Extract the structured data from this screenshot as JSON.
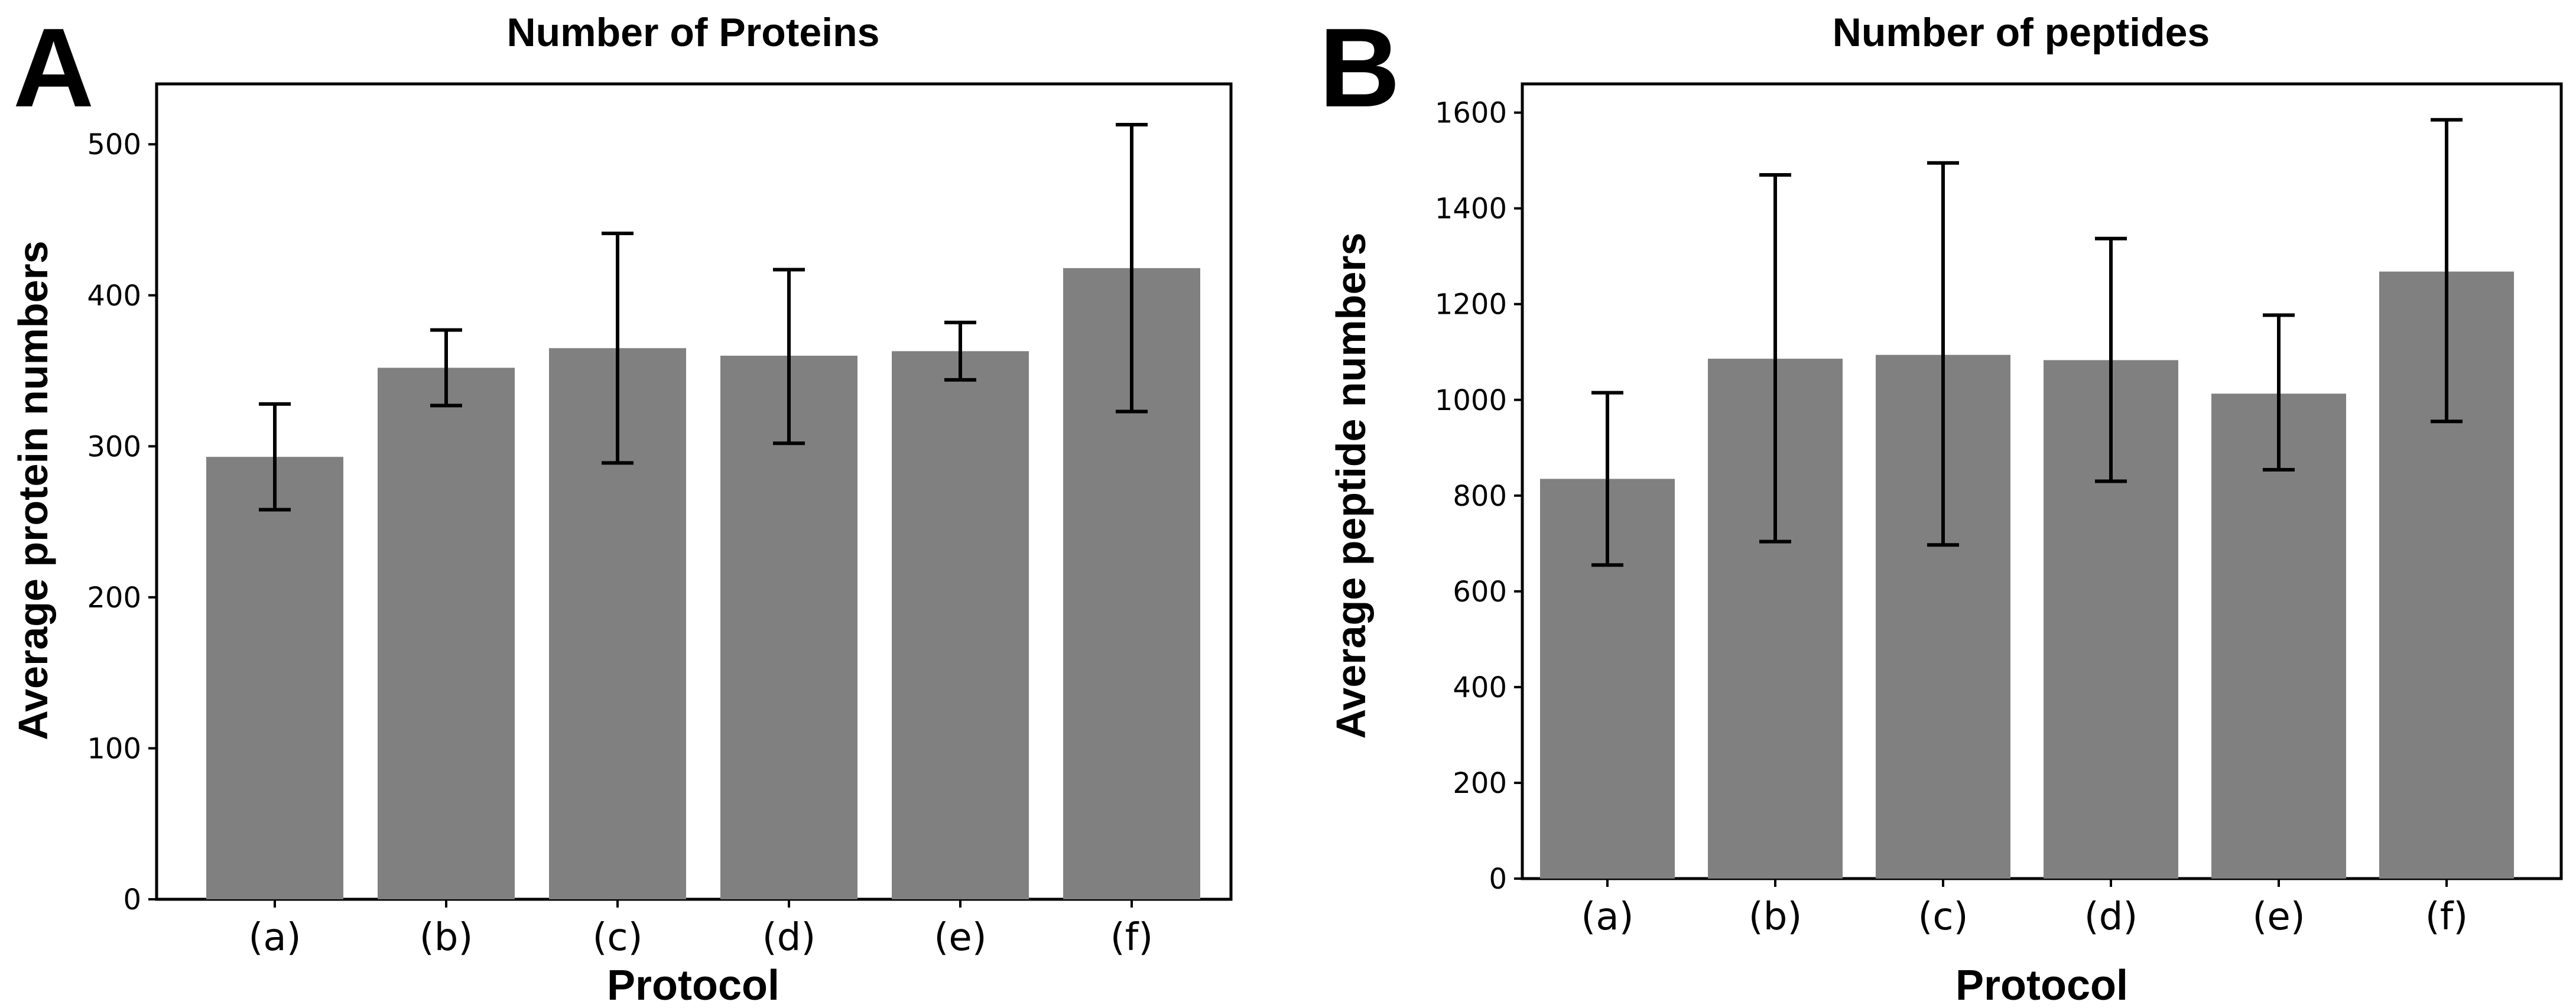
{
  "panels": [
    {
      "letter": "A"
    },
    {
      "letter": "B"
    }
  ],
  "chart_data": [
    {
      "type": "bar",
      "title": "Number of Proteins",
      "xlabel": "Protocol",
      "ylabel": "Average protein numbers",
      "categories": [
        "(a)",
        "(b)",
        "(c)",
        "(d)",
        "(e)",
        "(f)"
      ],
      "values": [
        293,
        352,
        365,
        360,
        363,
        418
      ],
      "error_low": [
        258,
        327,
        289,
        302,
        344,
        323
      ],
      "error_high": [
        328,
        377,
        441,
        417,
        382,
        513
      ],
      "yticks": [
        0,
        100,
        200,
        300,
        400,
        500
      ],
      "ylim": [
        0,
        540
      ],
      "bar_color": "#808080"
    },
    {
      "type": "bar",
      "title": "Number of peptides",
      "xlabel": "Protocol",
      "ylabel": "Average peptide numbers",
      "categories": [
        "(a)",
        "(b)",
        "(c)",
        "(d)",
        "(e)",
        "(f)"
      ],
      "values": [
        835,
        1086,
        1094,
        1083,
        1013,
        1268
      ],
      "error_low": [
        655,
        704,
        697,
        830,
        854,
        955
      ],
      "error_high": [
        1015,
        1470,
        1495,
        1337,
        1177,
        1585
      ],
      "yticks": [
        0,
        200,
        400,
        600,
        800,
        1000,
        1200,
        1400,
        1600
      ],
      "ylim": [
        0,
        1660
      ],
      "bar_color": "#808080"
    }
  ]
}
